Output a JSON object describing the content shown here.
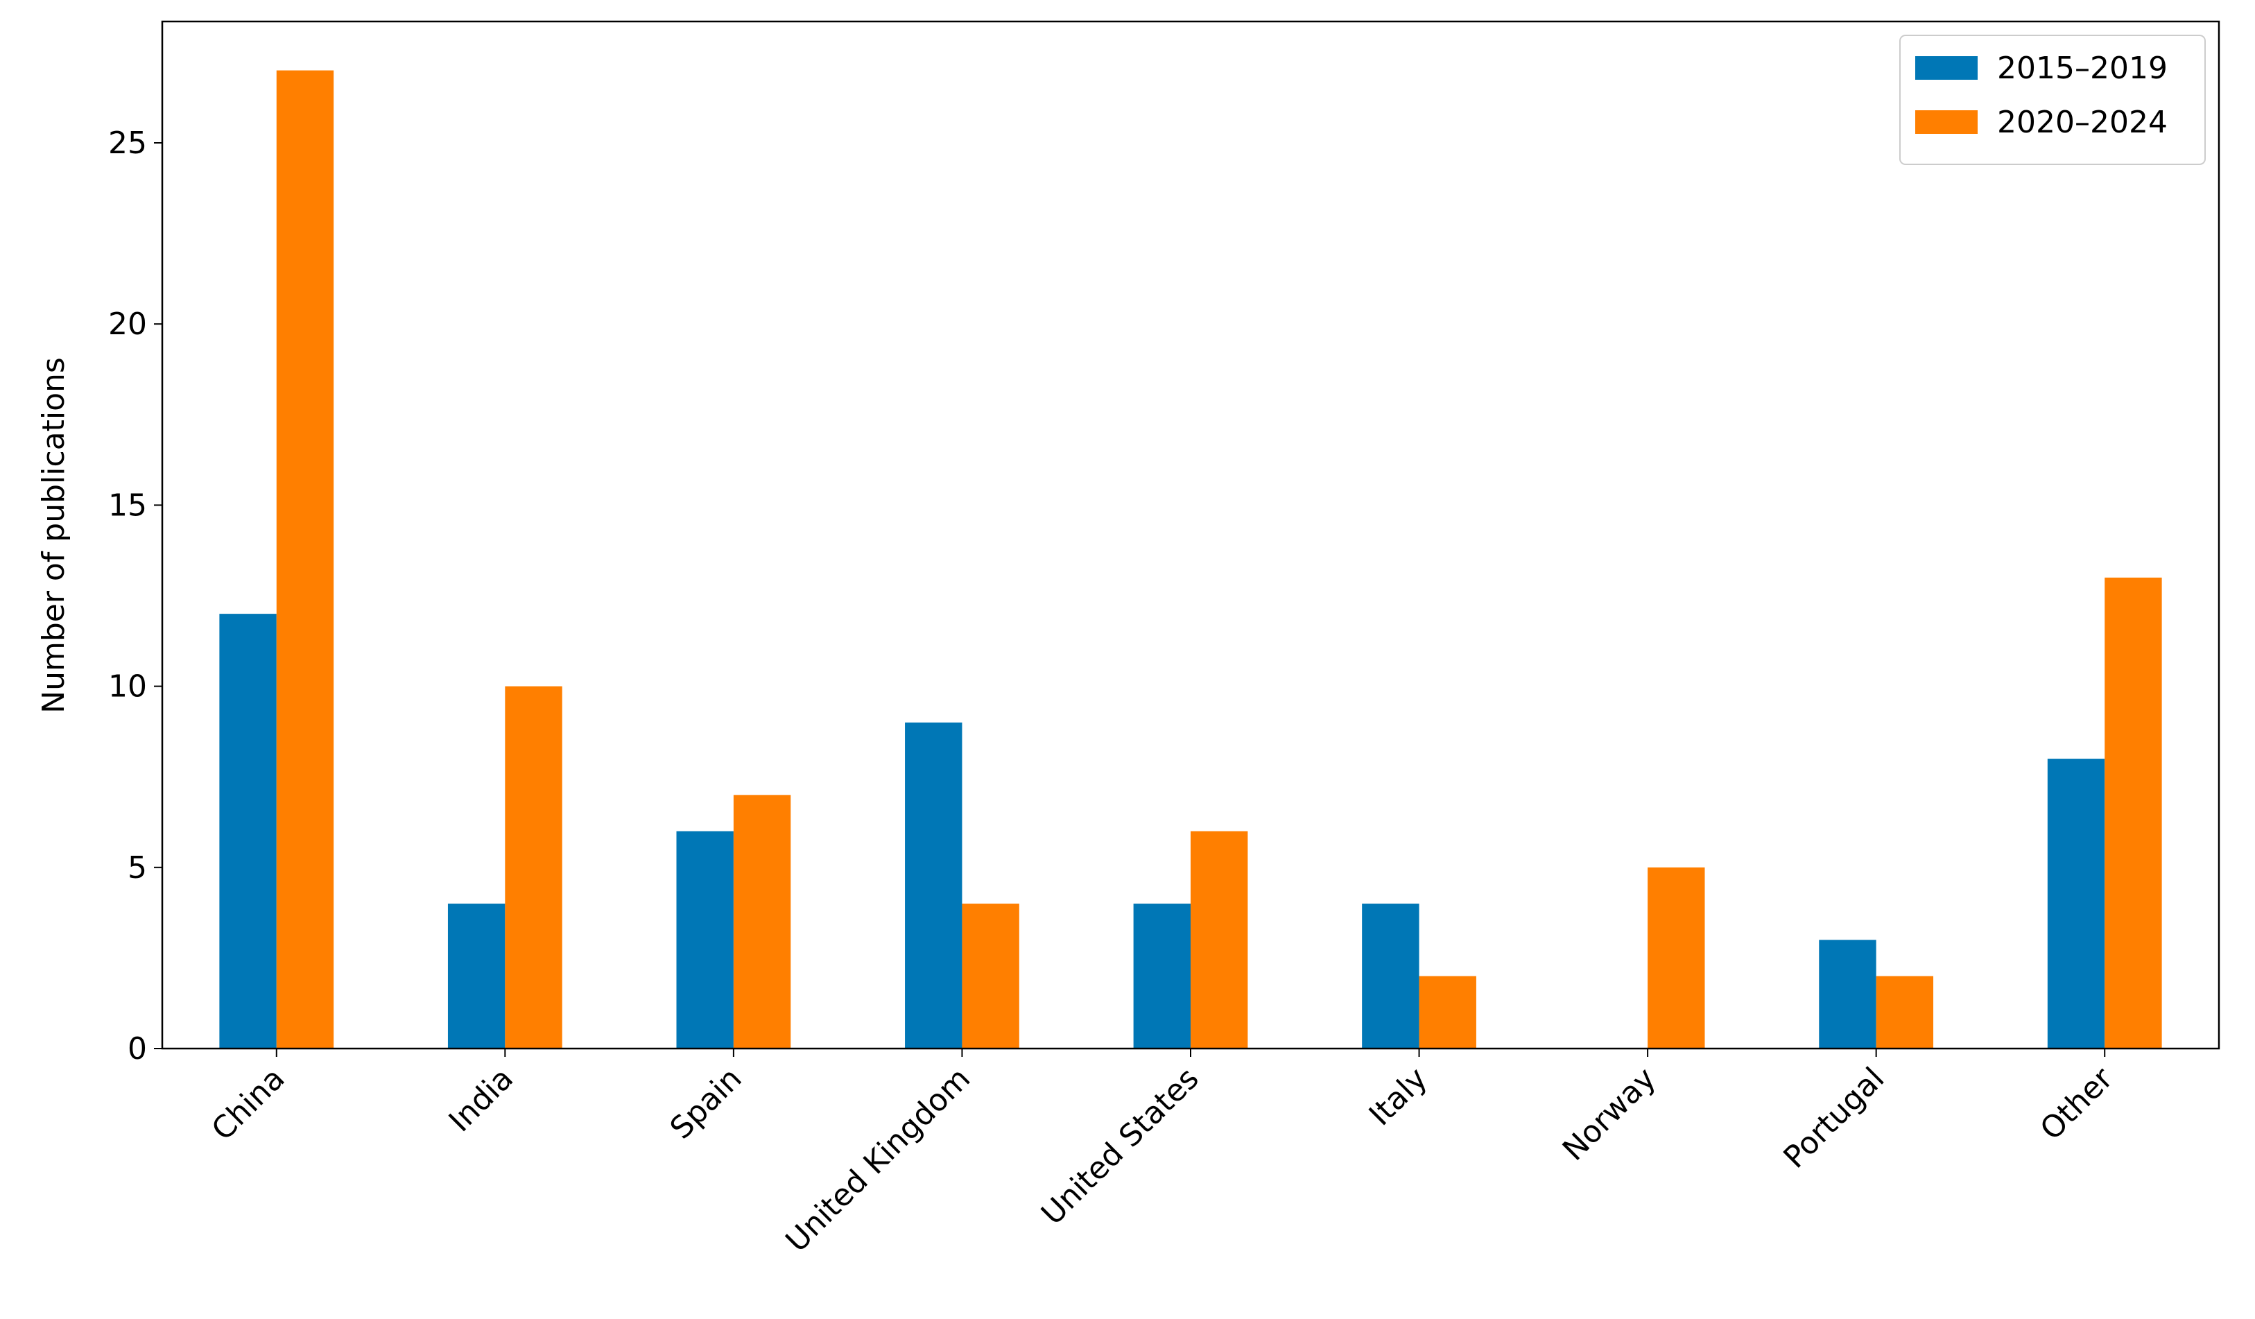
{
  "chart_data": {
    "type": "bar",
    "ylabel": "Number of publications",
    "categories": [
      "China",
      "India",
      "Spain",
      "United Kingdom",
      "United States",
      "Italy",
      "Norway",
      "Portugal",
      "Other"
    ],
    "series": [
      {
        "name": "2015–2019",
        "color": "#0077b6",
        "values": [
          12,
          4,
          6,
          9,
          4,
          4,
          0,
          3,
          8
        ]
      },
      {
        "name": "2020–2024",
        "color": "#ff7f00",
        "values": [
          27,
          10,
          7,
          4,
          6,
          2,
          5,
          2,
          13
        ]
      }
    ],
    "ylim": [
      0,
      28.35
    ],
    "yticks": [
      0,
      5,
      10,
      15,
      20,
      25
    ],
    "legend": "upper right"
  }
}
